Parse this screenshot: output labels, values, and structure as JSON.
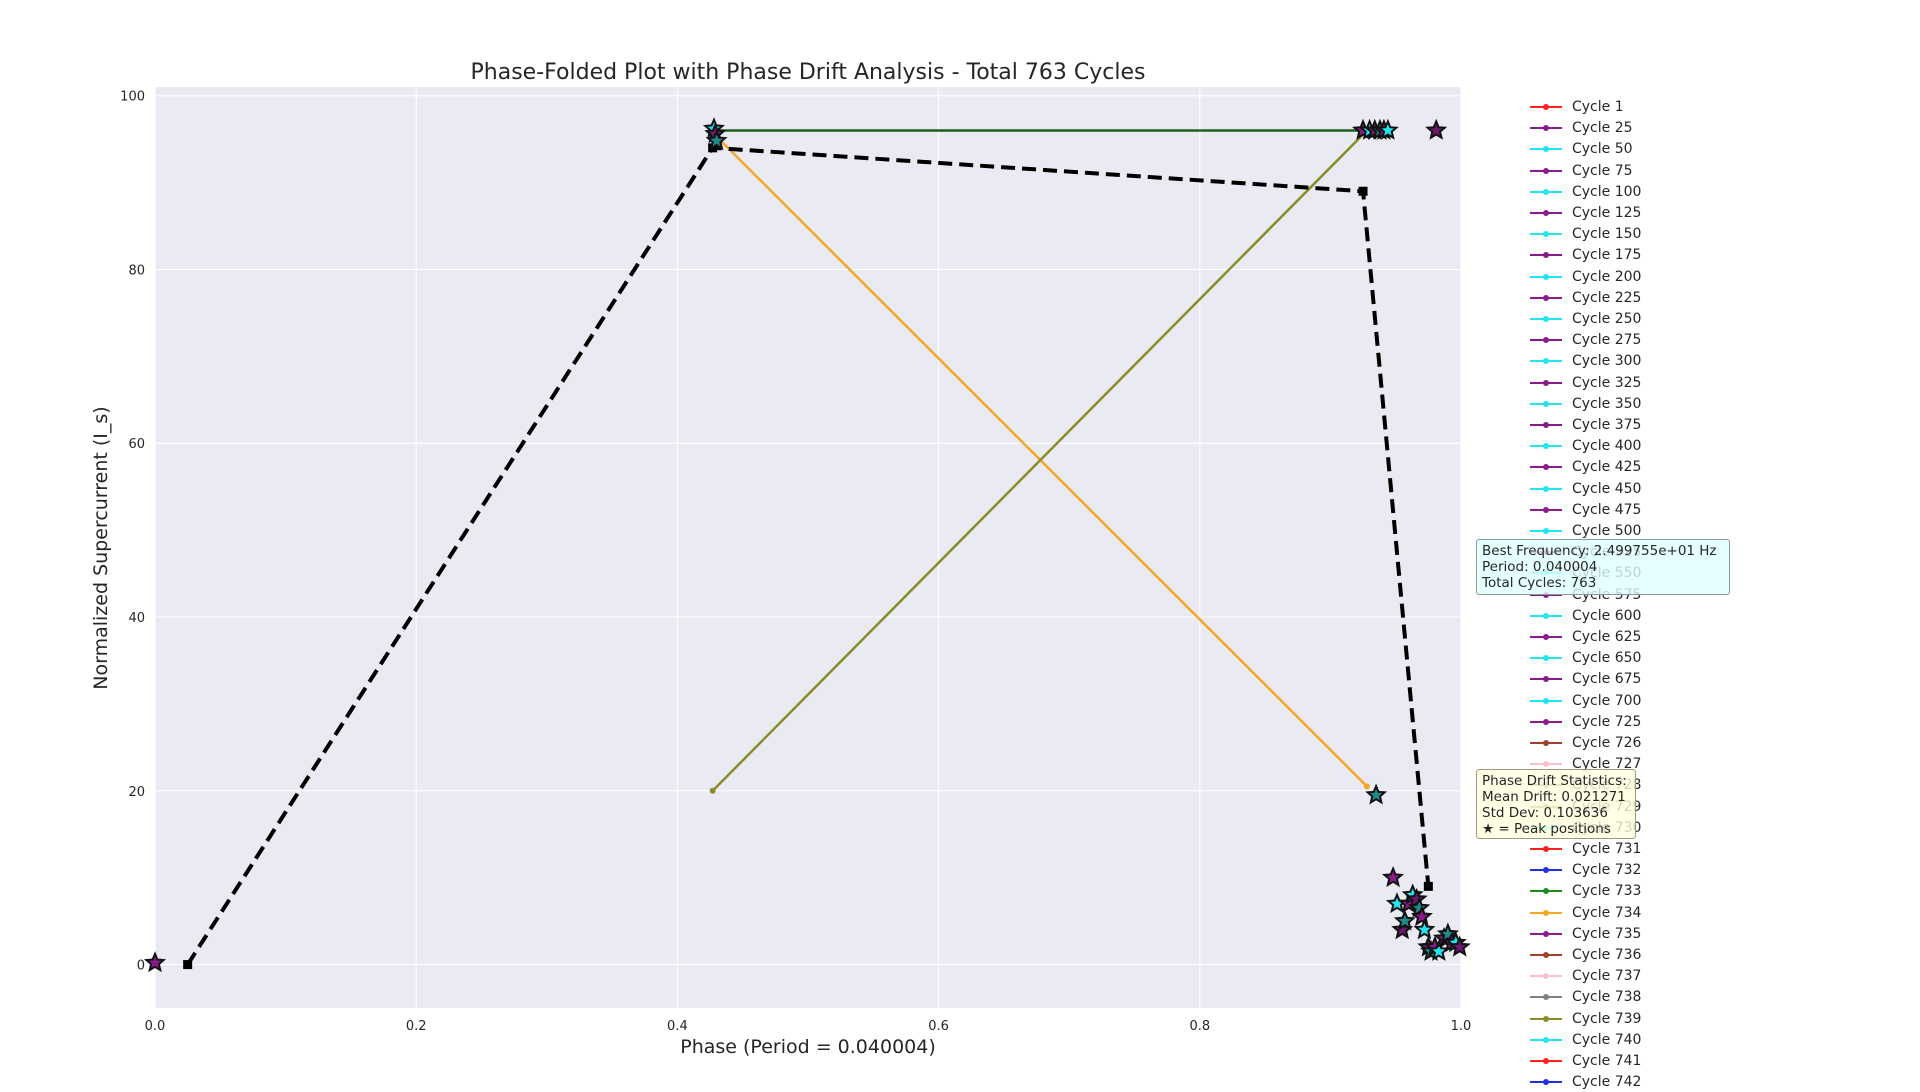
{
  "chart_data": {
    "type": "line",
    "title": "Phase-Folded Plot with Phase Drift Analysis - Total 763 Cycles",
    "xlabel": "Phase (Period = 0.040004)",
    "ylabel": "Normalized Supercurrent (I_s)",
    "xlim": [
      0.0,
      1.0
    ],
    "ylim": [
      -5,
      101
    ],
    "xticks": [
      0.0,
      0.2,
      0.4,
      0.6,
      0.8,
      1.0
    ],
    "xtick_labels": [
      "0.0",
      "0.2",
      "0.4",
      "0.6",
      "0.8",
      "1.0"
    ],
    "yticks": [
      0,
      20,
      40,
      60,
      80,
      100
    ],
    "ytick_labels": [
      "0",
      "20",
      "40",
      "60",
      "80",
      "100"
    ],
    "grid": true,
    "background": "#eaeaf2",
    "series": [
      {
        "color": "#1b5e20",
        "style": "solid",
        "x": [
          0.428,
          0.925
        ],
        "y": [
          96,
          96
        ]
      },
      {
        "color": "#f5a623",
        "style": "solid",
        "x": [
          0.432,
          0.928
        ],
        "y": [
          95,
          20.5
        ]
      },
      {
        "color": "#8b8b2a",
        "style": "solid",
        "x": [
          0.427,
          0.928
        ],
        "y": [
          20,
          96
        ]
      },
      {
        "color": "#000000",
        "style": "dashed",
        "x": [
          0.025,
          0.427,
          0.925,
          0.975
        ],
        "y": [
          0,
          94,
          89,
          9
        ]
      }
    ],
    "peaks": [
      {
        "x": 0.0,
        "y": 0.2
      },
      {
        "x": 0.428,
        "y": 96.2
      },
      {
        "x": 0.429,
        "y": 95.6
      },
      {
        "x": 0.43,
        "y": 94.8
      },
      {
        "x": 0.925,
        "y": 96
      },
      {
        "x": 0.93,
        "y": 96
      },
      {
        "x": 0.934,
        "y": 96
      },
      {
        "x": 0.938,
        "y": 96
      },
      {
        "x": 0.941,
        "y": 96
      },
      {
        "x": 0.944,
        "y": 96
      },
      {
        "x": 0.981,
        "y": 96
      },
      {
        "x": 0.935,
        "y": 19.5
      },
      {
        "x": 0.948,
        "y": 10
      },
      {
        "x": 0.951,
        "y": 7
      },
      {
        "x": 0.955,
        "y": 4
      },
      {
        "x": 0.957,
        "y": 5
      },
      {
        "x": 0.96,
        "y": 7
      },
      {
        "x": 0.963,
        "y": 8
      },
      {
        "x": 0.966,
        "y": 7.5
      },
      {
        "x": 0.968,
        "y": 6.5
      },
      {
        "x": 0.97,
        "y": 5.5
      },
      {
        "x": 0.972,
        "y": 4
      },
      {
        "x": 0.975,
        "y": 2
      },
      {
        "x": 0.977,
        "y": 1.5
      },
      {
        "x": 0.98,
        "y": 2
      },
      {
        "x": 0.983,
        "y": 1.5
      },
      {
        "x": 0.987,
        "y": 3
      },
      {
        "x": 0.99,
        "y": 3.5
      },
      {
        "x": 0.993,
        "y": 2.5
      },
      {
        "x": 0.996,
        "y": 2.5
      },
      {
        "x": 0.999,
        "y": 2
      }
    ],
    "legend": {
      "placement": "outside right",
      "entries": [
        {
          "label": "Cycle 1",
          "color": "#ff2020"
        },
        {
          "label": "Cycle 25",
          "color": "#8b1a8b"
        },
        {
          "label": "Cycle 50",
          "color": "#22e5f0"
        },
        {
          "label": "Cycle 75",
          "color": "#8b1a8b"
        },
        {
          "label": "Cycle 100",
          "color": "#22e5f0"
        },
        {
          "label": "Cycle 125",
          "color": "#8b1a8b"
        },
        {
          "label": "Cycle 150",
          "color": "#22e5f0"
        },
        {
          "label": "Cycle 175",
          "color": "#8b1a8b"
        },
        {
          "label": "Cycle 200",
          "color": "#22e5f0"
        },
        {
          "label": "Cycle 225",
          "color": "#8b1a8b"
        },
        {
          "label": "Cycle 250",
          "color": "#22e5f0"
        },
        {
          "label": "Cycle 275",
          "color": "#8b1a8b"
        },
        {
          "label": "Cycle 300",
          "color": "#22e5f0"
        },
        {
          "label": "Cycle 325",
          "color": "#8b1a8b"
        },
        {
          "label": "Cycle 350",
          "color": "#22e5f0"
        },
        {
          "label": "Cycle 375",
          "color": "#8b1a8b"
        },
        {
          "label": "Cycle 400",
          "color": "#22e5f0"
        },
        {
          "label": "Cycle 425",
          "color": "#8b1a8b"
        },
        {
          "label": "Cycle 450",
          "color": "#22e5f0"
        },
        {
          "label": "Cycle 475",
          "color": "#8b1a8b"
        },
        {
          "label": "Cycle 500",
          "color": "#22e5f0"
        },
        {
          "label": "Cycle 525",
          "color": "#8b1a8b"
        },
        {
          "label": "Cycle 550",
          "color": "#22e5f0"
        },
        {
          "label": "Cycle 575",
          "color": "#8b1a8b"
        },
        {
          "label": "Cycle 600",
          "color": "#22e5f0"
        },
        {
          "label": "Cycle 625",
          "color": "#8b1a8b"
        },
        {
          "label": "Cycle 650",
          "color": "#22e5f0"
        },
        {
          "label": "Cycle 675",
          "color": "#8b1a8b"
        },
        {
          "label": "Cycle 700",
          "color": "#22e5f0"
        },
        {
          "label": "Cycle 725",
          "color": "#8b1a8b"
        },
        {
          "label": "Cycle 726",
          "color": "#a0422a"
        },
        {
          "label": "Cycle 727",
          "color": "#ffc0cb"
        },
        {
          "label": "Cycle 728",
          "color": "#808080"
        },
        {
          "label": "Cycle 729",
          "color": "#8b8b2a"
        },
        {
          "label": "Cycle 730",
          "color": "#22e5f0"
        },
        {
          "label": "Cycle 731",
          "color": "#ff2020"
        },
        {
          "label": "Cycle 732",
          "color": "#2030e0"
        },
        {
          "label": "Cycle 733",
          "color": "#1e8b1e"
        },
        {
          "label": "Cycle 734",
          "color": "#f5a623"
        },
        {
          "label": "Cycle 735",
          "color": "#8b1a8b"
        },
        {
          "label": "Cycle 736",
          "color": "#a0422a"
        },
        {
          "label": "Cycle 737",
          "color": "#ffc0cb"
        },
        {
          "label": "Cycle 738",
          "color": "#808080"
        },
        {
          "label": "Cycle 739",
          "color": "#8b8b2a"
        },
        {
          "label": "Cycle 740",
          "color": "#22e5f0"
        },
        {
          "label": "Cycle 741",
          "color": "#ff2020"
        },
        {
          "label": "Cycle 742",
          "color": "#2030e0"
        }
      ]
    },
    "annotations": {
      "frequency_box": [
        "Best Frequency: 2.499755e+01 Hz",
        "Period: 0.040004",
        "Total Cycles: 763"
      ],
      "drift_box": [
        "Phase Drift Statistics:",
        "Mean Drift: 0.021271",
        "Std Dev: 0.103636",
        "★ = Peak positions"
      ]
    }
  }
}
